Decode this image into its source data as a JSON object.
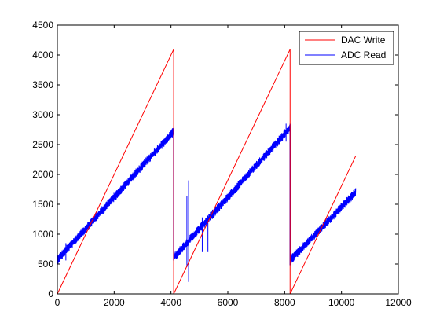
{
  "chart_data": {
    "type": "line",
    "title": "",
    "xlabel": "",
    "ylabel": "",
    "xlim": [
      0,
      12000
    ],
    "ylim": [
      0,
      4500
    ],
    "xticks": [
      0,
      2000,
      4000,
      6000,
      8000,
      10000,
      12000
    ],
    "yticks": [
      0,
      500,
      1000,
      1500,
      2000,
      2500,
      3000,
      3500,
      4000,
      4500
    ],
    "grid": false,
    "legend": {
      "position": "top-right"
    },
    "series": [
      {
        "name": "DAC Write",
        "color": "#ff0000",
        "style": "thin-line",
        "x": [
          0,
          4095,
          4095,
          4096,
          8191,
          8191,
          8192,
          10500
        ],
        "y": [
          0,
          4095,
          0,
          0,
          4095,
          0,
          0,
          2308
        ]
      },
      {
        "name": "ADC Read",
        "color": "#0000ff",
        "style": "noisy-band",
        "segments": [
          {
            "x": [
              0,
              4096
            ],
            "y": [
              570,
              2720
            ],
            "noise": 55
          },
          {
            "x": [
              4096,
              8192
            ],
            "y": [
              610,
              2780
            ],
            "noise": 55
          },
          {
            "x": [
              8192,
              10500
            ],
            "y": [
              560,
              1700
            ],
            "noise": 55
          }
        ],
        "drops": [
          {
            "x": 4096,
            "y_top": 2780,
            "y_bottom": 560
          },
          {
            "x": 8192,
            "y_top": 2840,
            "y_bottom": 480
          }
        ],
        "spikes": [
          {
            "x": 4620,
            "y_min": 200,
            "y_max": 1900
          },
          {
            "x": 4560,
            "y_min": 450,
            "y_max": 1640
          },
          {
            "x": 5100,
            "y_min": 700,
            "y_max": 1280
          },
          {
            "x": 5300,
            "y_min": 700,
            "y_max": 1250
          },
          {
            "x": 300,
            "y_min": 560,
            "y_max": 850
          },
          {
            "x": 8050,
            "y_min": 2550,
            "y_max": 2850
          }
        ]
      }
    ]
  }
}
